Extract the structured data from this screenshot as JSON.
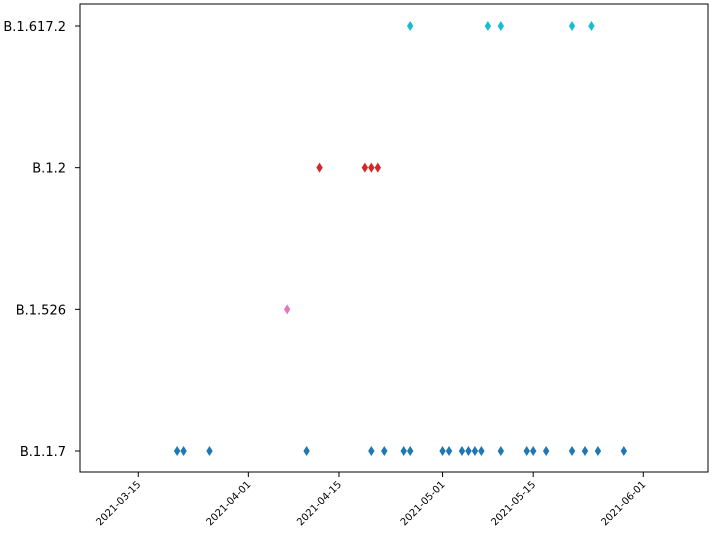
{
  "chart_data": {
    "type": "scatter",
    "marker": "diamond",
    "grid": false,
    "legend": false,
    "xlim": [
      "2021-03-06",
      "2021-06-11"
    ],
    "y_categories": [
      "B.1.1.7",
      "B.1.526",
      "B.1.2",
      "B.1.617.2"
    ],
    "x_ticks": [
      "2021-03-15",
      "2021-04-01",
      "2021-04-15",
      "2021-05-01",
      "2021-05-15",
      "2021-06-01"
    ],
    "series": [
      {
        "category": "B.1.1.7",
        "color": "#1f77b4",
        "x": [
          "2021-03-21",
          "2021-03-22",
          "2021-03-26",
          "2021-04-10",
          "2021-04-20",
          "2021-04-22",
          "2021-04-25",
          "2021-04-26",
          "2021-05-01",
          "2021-05-02",
          "2021-05-04",
          "2021-05-05",
          "2021-05-06",
          "2021-05-07",
          "2021-05-10",
          "2021-05-14",
          "2021-05-15",
          "2021-05-17",
          "2021-05-21",
          "2021-05-23",
          "2021-05-25",
          "2021-05-29"
        ]
      },
      {
        "category": "B.1.526",
        "color": "#e377c2",
        "x": [
          "2021-04-07"
        ]
      },
      {
        "category": "B.1.2",
        "color": "#d62728",
        "x": [
          "2021-04-12",
          "2021-04-19",
          "2021-04-20",
          "2021-04-21"
        ]
      },
      {
        "category": "B.1.617.2",
        "color": "#17becf",
        "x": [
          "2021-04-26",
          "2021-05-08",
          "2021-05-10",
          "2021-05-21",
          "2021-05-24"
        ]
      }
    ]
  }
}
